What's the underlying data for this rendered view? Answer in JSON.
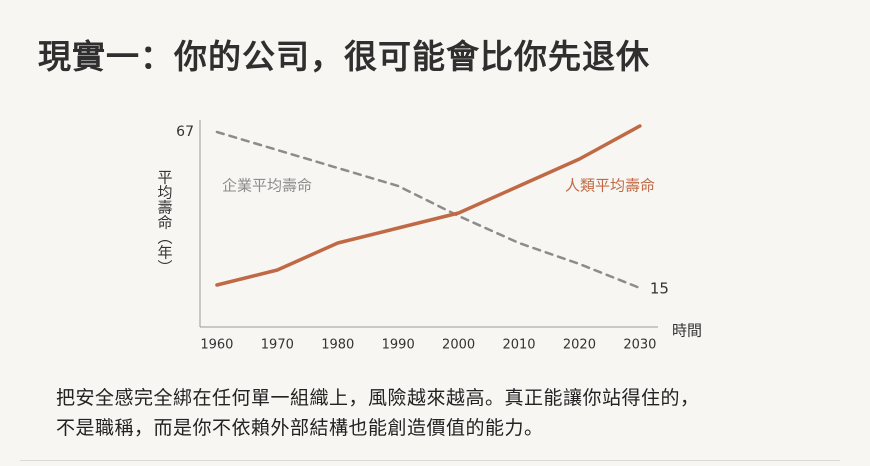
{
  "header": {
    "title": "現實一：你的公司，很可能會比你先退休"
  },
  "chart_data": {
    "type": "line",
    "y_label": "平均壽命（年）",
    "x_label": "時間",
    "x": [
      1960,
      1970,
      1980,
      1990,
      2000,
      2010,
      2020,
      2030
    ],
    "xlim": [
      1957.2,
      2033
    ],
    "xticks": [
      1960,
      1970,
      1980,
      1990,
      2000,
      2010,
      2020,
      2030
    ],
    "ylim": [
      2,
      71
    ],
    "yticks": [
      67
    ],
    "series": [
      {
        "name": "企業平均壽命",
        "color": "#8c8c8c",
        "dashed": true,
        "values": [
          67,
          61,
          55,
          49,
          39,
          30,
          23,
          15
        ]
      },
      {
        "name": "人類平均壽命",
        "color": "#bf6a45",
        "dashed": false,
        "values": [
          16,
          21,
          30,
          35,
          40,
          49,
          58,
          69
        ]
      }
    ]
  },
  "caption": [
    "把安全感完全綁在任何單一組織上，風險越來越高。真正能讓你站得住的，",
    "不是職稱，而是你不依賴外部結構也能創造價值的能力。"
  ]
}
